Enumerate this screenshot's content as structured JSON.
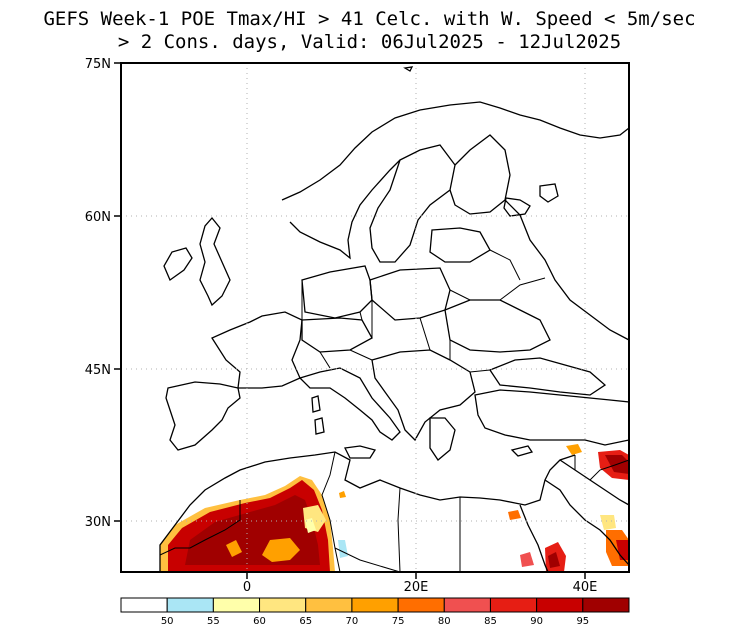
{
  "title": {
    "line1": "GEFS Week-1 POE Tmax/HI > 41 Celc. with W. Speed < 5m/sec",
    "line2": "> 2 Cons. days, Valid: 06Jul2025 - 12Jul2025"
  },
  "axes": {
    "lat_ticks": [
      "75N",
      "60N",
      "45N",
      "30N"
    ],
    "lon_ticks": [
      "0",
      "20E",
      "40E"
    ]
  },
  "colorbar": {
    "labels": [
      "50",
      "55",
      "60",
      "65",
      "70",
      "75",
      "80",
      "85",
      "90",
      "95"
    ],
    "colors": [
      "#ffffff",
      "#aae6f5",
      "#ffffaa",
      "#ffe680",
      "#ffc040",
      "#ffa000",
      "#ff6e00",
      "#f05050",
      "#e61e14",
      "#c80000",
      "#a00000"
    ]
  }
}
